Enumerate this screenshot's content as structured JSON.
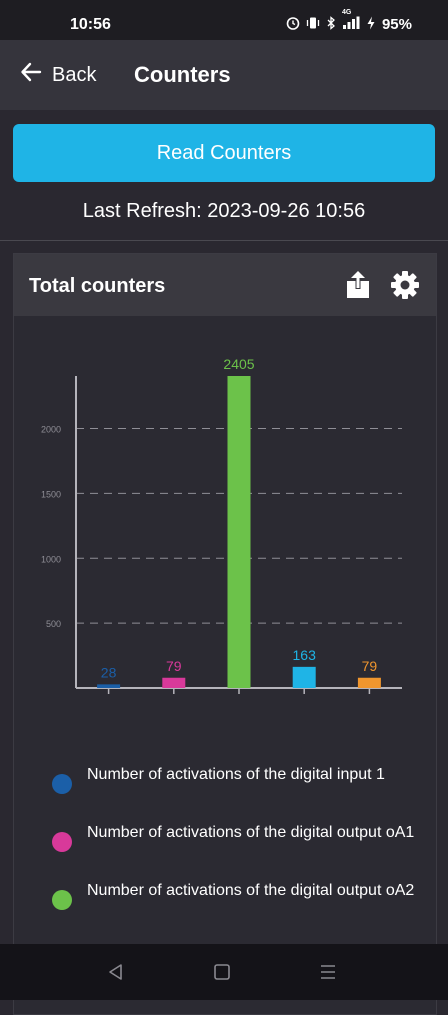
{
  "status_bar": {
    "time": "10:56",
    "icons": [
      "alarm-icon",
      "vibrate-icon",
      "bluetooth-icon",
      "signal-icon",
      "battery-charging-icon"
    ],
    "network": "4G",
    "battery": "95%"
  },
  "app_bar": {
    "back_label": "Back",
    "title": "Counters"
  },
  "read_button": {
    "label": "Read Counters"
  },
  "last_refresh": "Last Refresh: 2023-09-26 10:56",
  "card": {
    "title": "Total counters",
    "icons": [
      "share-icon",
      "gear-icon"
    ]
  },
  "chart_data": {
    "type": "bar",
    "categories": [
      "",
      "",
      "",
      "",
      ""
    ],
    "values": [
      28,
      79,
      2405,
      163,
      79
    ],
    "data_labels": [
      "28",
      "79",
      "2405",
      "163",
      "79"
    ],
    "colors": [
      "#1b5fa8",
      "#d8399a",
      "#6cc24a",
      "#1fb4e6",
      "#f0962e"
    ],
    "yticks": [
      500,
      1000,
      1500,
      2000
    ],
    "ytick_labels": [
      "500",
      "1000",
      "1500",
      "2000"
    ],
    "ylim": [
      0,
      2405
    ],
    "grid": "horizontal dashed",
    "legend_position": "bottom"
  },
  "legend": [
    {
      "label": "Number of activations of the digital input 1",
      "color": "#1b5fa8"
    },
    {
      "label": "Number of activations of the digital output oA1",
      "color": "#d8399a"
    },
    {
      "label": "Number of activations of the digital output oA2",
      "color": "#6cc24a"
    }
  ],
  "nav_bar": {
    "icons": [
      "back-triangle-icon",
      "home-square-icon",
      "recents-lines-icon"
    ]
  }
}
